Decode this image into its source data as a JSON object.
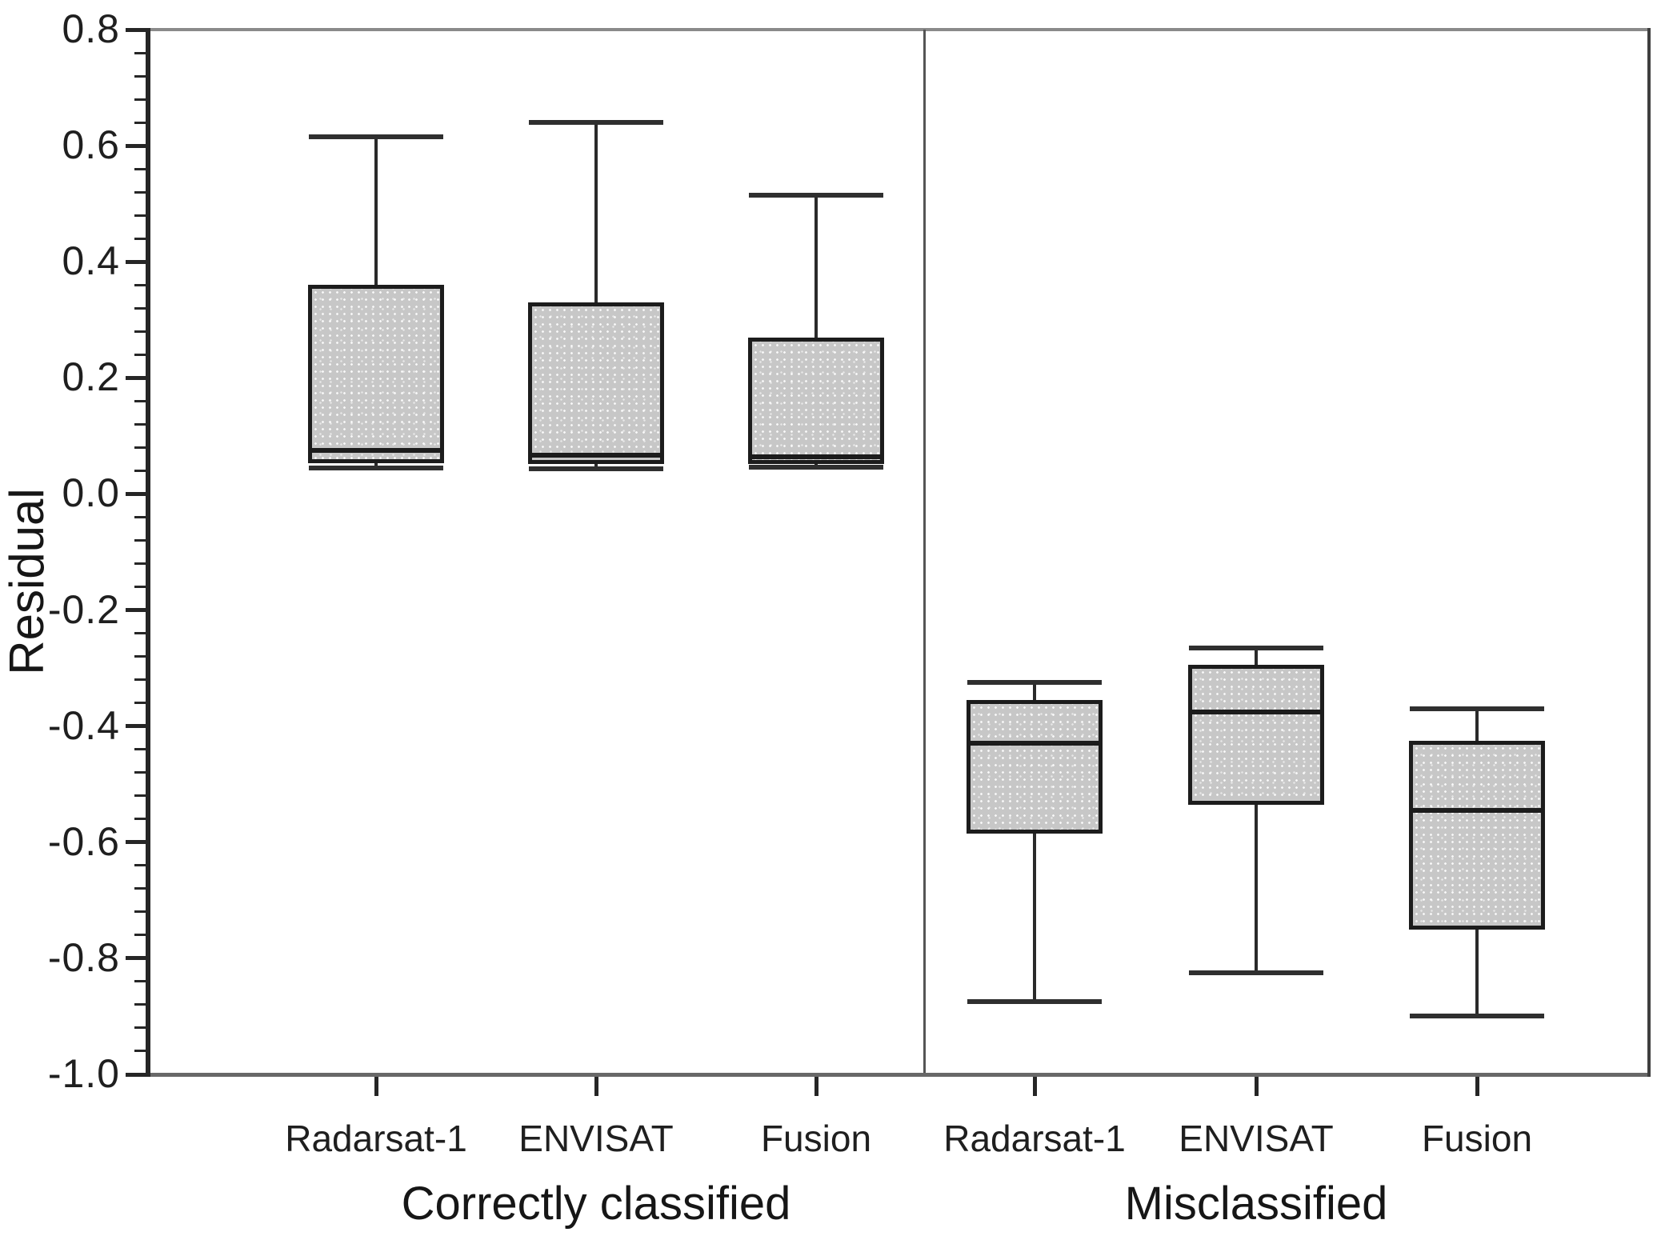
{
  "chart_data": {
    "type": "boxplot",
    "title": "",
    "ylabel": "Residual",
    "xlabel": "",
    "ylim": [
      -1.0,
      0.8
    ],
    "y_major_tick_step": 0.2,
    "y_minor_tick_step": 0.04,
    "y_tick_labels": [
      "0.8",
      "0.6",
      "0.4",
      "0.2",
      "0.0",
      "-0.2",
      "-0.4",
      "-0.6",
      "-0.8",
      "-1.0"
    ],
    "grid": false,
    "legend": "none",
    "groups": [
      {
        "label": "Correctly classified",
        "boxes": [
          {
            "category": "Radarsat-1",
            "min": 0.045,
            "q1": 0.053,
            "median": 0.075,
            "q3": 0.36,
            "max": 0.615
          },
          {
            "category": "ENVISAT",
            "min": 0.044,
            "q1": 0.051,
            "median": 0.067,
            "q3": 0.33,
            "max": 0.64
          },
          {
            "category": "Fusion",
            "min": 0.046,
            "q1": 0.052,
            "median": 0.064,
            "q3": 0.27,
            "max": 0.515
          }
        ]
      },
      {
        "label": "Misclassified",
        "boxes": [
          {
            "category": "Radarsat-1",
            "min": -0.875,
            "q1": -0.585,
            "median": -0.43,
            "q3": -0.355,
            "max": -0.325
          },
          {
            "category": "ENVISAT",
            "min": -0.825,
            "q1": -0.535,
            "median": -0.375,
            "q3": -0.295,
            "max": -0.265
          },
          {
            "category": "Fusion",
            "min": -0.9,
            "q1": -0.75,
            "median": -0.545,
            "q3": -0.425,
            "max": -0.37
          }
        ]
      }
    ],
    "colors": {
      "background": "#ffffff",
      "box_fill": "#c7c7c7",
      "box_border": "#1c1c1c",
      "axis": "#262626",
      "frame": "#6b6b6b",
      "text": "#1f1f1f"
    }
  }
}
